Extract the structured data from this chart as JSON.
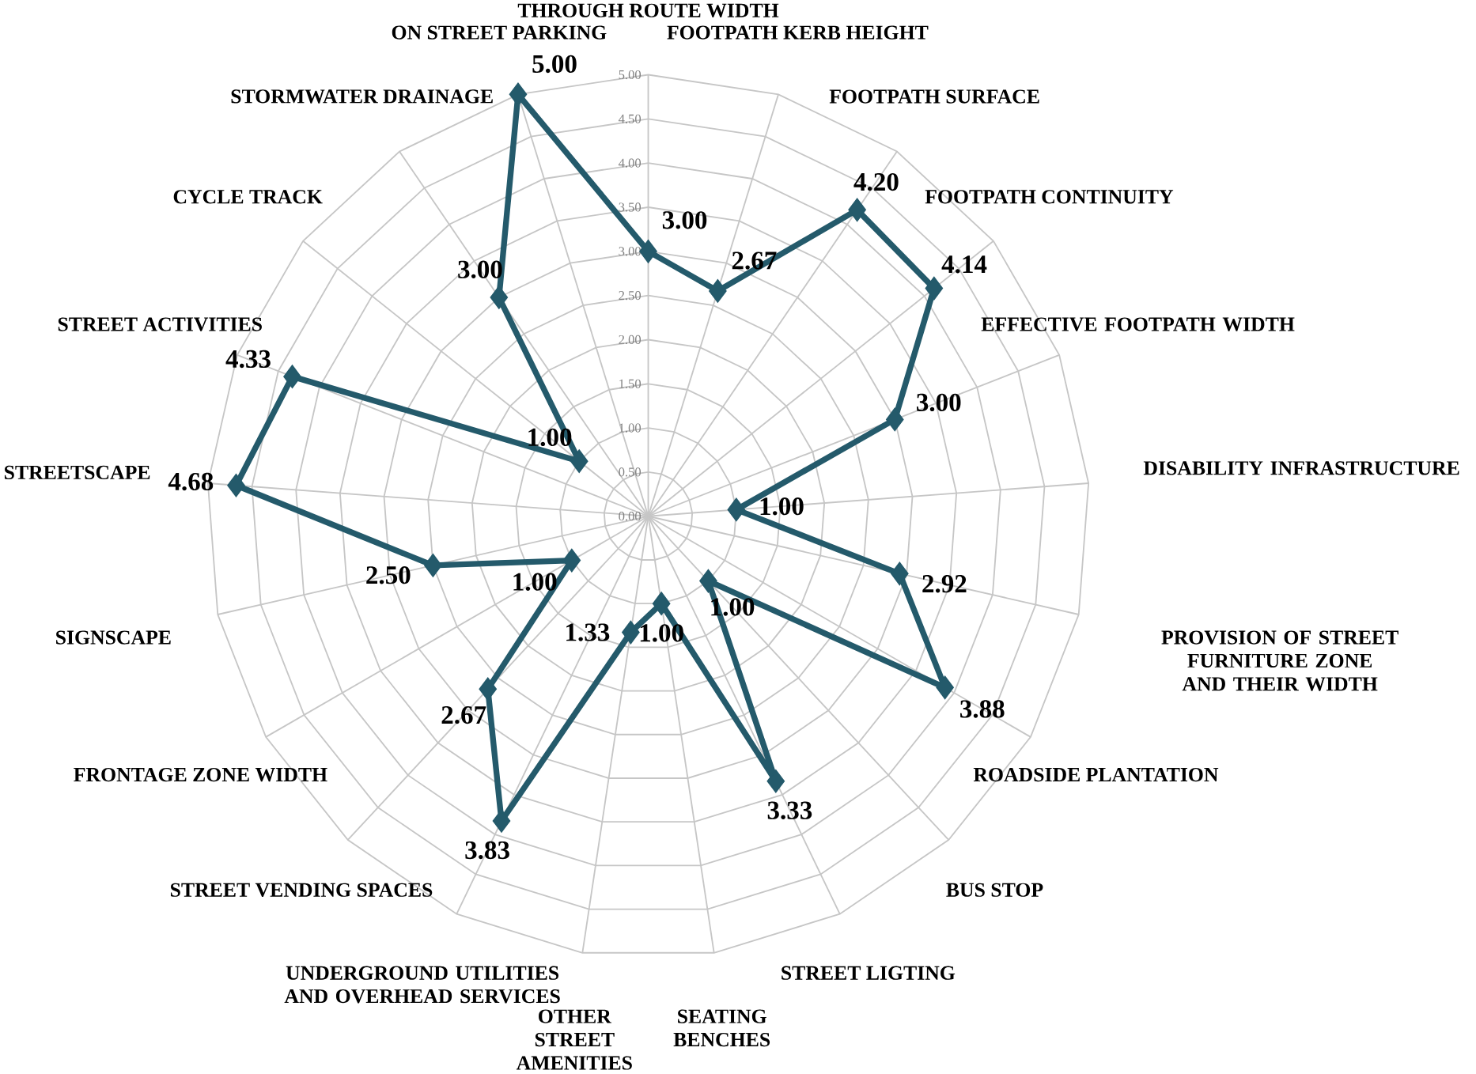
{
  "chart_data": {
    "type": "radar",
    "categories": [
      "THROUGH ROUTE WIDTH",
      "FOOTPATH KERB HEIGHT",
      "FOOTPATH SURFACE",
      "FOOTPATH CONTINUITY",
      "EFFECTIVE FOOTPATH WIDTH",
      "DISABILITY INFRASTRUCTURE",
      "PROVISION OF STREET FURNITURE ZONE AND THEIR WIDTH",
      "ROADSIDE PLANTATION",
      "BUS STOP",
      "STREET LIGTING",
      "SEATING BENCHES",
      "OTHER STREET AMENITIES",
      "UNDERGROUND UTILITIES AND OVERHEAD SERVICES",
      "STREET VENDING SPACES",
      "FRONTAGE ZONE WIDTH",
      "SIGNSCAPE",
      "STREETSCAPE",
      "STREET ACTIVITIES",
      "CYCLE TRACK",
      "STORMWATER DRAINAGE",
      "ON STREET PARKING"
    ],
    "series": [
      {
        "color": "#245a6b",
        "values": [
          3.0,
          2.67,
          4.2,
          4.14,
          3.0,
          1.0,
          2.92,
          3.88,
          1.0,
          3.33,
          1.0,
          1.33,
          3.83,
          2.67,
          1.0,
          2.5,
          4.68,
          4.33,
          1.0,
          3.0,
          5.0
        ],
        "value_labels": [
          "3.00",
          "2.67",
          "4.20",
          "4.14",
          "3.00",
          "1.00",
          "2.92",
          "3.88",
          "1.00",
          "3.33",
          "1.00",
          "1.33",
          "3.83",
          "2.67",
          "1.00",
          "2.50",
          "4.68",
          "4.33",
          "1.00",
          "3.00",
          "5.00"
        ]
      }
    ],
    "ylim": [
      0,
      5
    ],
    "yticks": [
      {
        "value": 0,
        "label": "0.00"
      },
      {
        "value": 0.5,
        "label": "0.50"
      },
      {
        "value": 1,
        "label": "1.00"
      },
      {
        "value": 1.5,
        "label": "1.50"
      },
      {
        "value": 2,
        "label": "2.00"
      },
      {
        "value": 2.5,
        "label": "2.50"
      },
      {
        "value": 3,
        "label": "3.00"
      },
      {
        "value": 3.5,
        "label": "3.50"
      },
      {
        "value": 4,
        "label": "4.00"
      },
      {
        "value": 4.5,
        "label": "4.50"
      },
      {
        "value": 5,
        "label": "5.00"
      }
    ],
    "grid": true,
    "marker": "diamond",
    "line_style": "solid"
  }
}
